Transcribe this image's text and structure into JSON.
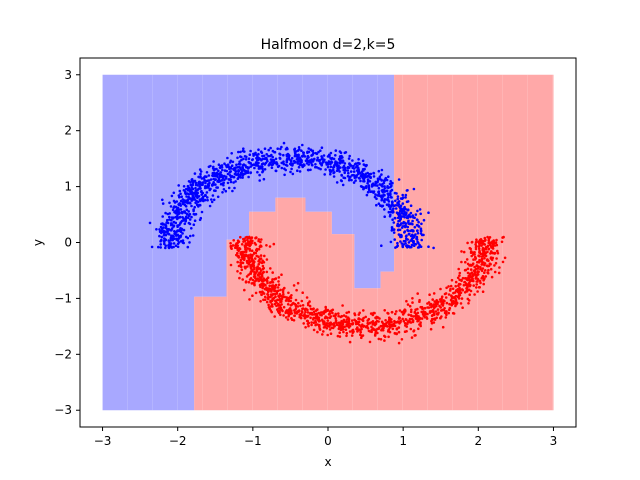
{
  "chart_data": {
    "type": "scatter",
    "title": "Halfmoon d=2,k=5",
    "xlabel": "x",
    "ylabel": "y",
    "xlim": [
      -3.3,
      3.3
    ],
    "ylim": [
      -3.3,
      3.3
    ],
    "xticks": [
      -3,
      -2,
      -1,
      0,
      1,
      2,
      3
    ],
    "yticks": [
      -3,
      -2,
      -1,
      0,
      1,
      2,
      3
    ],
    "grid": false,
    "legend": "none",
    "grid_extent": {
      "x": [
        -3,
        3
      ],
      "y": [
        -3,
        3
      ]
    },
    "decision_regions": [
      {
        "class": "blue",
        "polygon": [
          [
            -3,
            -3
          ],
          [
            -1.78,
            -3
          ],
          [
            -1.78,
            -0.97
          ],
          [
            -1.35,
            -0.97
          ],
          [
            -1.35,
            0.05
          ],
          [
            -1.05,
            0.05
          ],
          [
            -1.05,
            0.55
          ],
          [
            -0.7,
            0.55
          ],
          [
            -0.7,
            0.8
          ],
          [
            -0.3,
            0.8
          ],
          [
            -0.3,
            0.55
          ],
          [
            0.05,
            0.55
          ],
          [
            0.05,
            0.15
          ],
          [
            0.35,
            0.15
          ],
          [
            0.35,
            -0.82
          ],
          [
            0.7,
            -0.82
          ],
          [
            0.7,
            -0.52
          ],
          [
            0.88,
            -0.52
          ],
          [
            0.88,
            3
          ],
          [
            -3,
            3
          ]
        ]
      },
      {
        "class": "red",
        "polygon": [
          [
            -1.78,
            -3
          ],
          [
            3,
            -3
          ],
          [
            3,
            3
          ],
          [
            0.88,
            3
          ],
          [
            0.88,
            -0.52
          ],
          [
            0.7,
            -0.52
          ],
          [
            0.7,
            -0.82
          ],
          [
            0.35,
            -0.82
          ],
          [
            0.35,
            0.15
          ],
          [
            0.05,
            0.15
          ],
          [
            0.05,
            0.55
          ],
          [
            -0.3,
            0.55
          ],
          [
            -0.3,
            0.8
          ],
          [
            -0.7,
            0.8
          ],
          [
            -0.7,
            0.55
          ],
          [
            -1.05,
            0.55
          ],
          [
            -1.05,
            0.05
          ],
          [
            -1.35,
            0.05
          ],
          [
            -1.35,
            -0.97
          ],
          [
            -1.78,
            -0.97
          ]
        ]
      }
    ],
    "series": [
      {
        "color": "#0000ff",
        "shape": "upper half circle",
        "center": [
          -0.5,
          -0.1
        ],
        "radius": 1.6,
        "angle_deg": [
          0,
          180
        ],
        "thickness": 0.32,
        "n_points": 1400
      },
      {
        "color": "#ff0000",
        "shape": "lower half circle",
        "center": [
          0.5,
          0.1
        ],
        "radius": 1.6,
        "angle_deg": [
          180,
          360
        ],
        "thickness": 0.32,
        "n_points": 1400
      }
    ],
    "colors": {
      "blue_region": "#9999ff",
      "red_region": "#ff9999",
      "blue_points": "#0000ff",
      "red_points": "#ff0000"
    }
  }
}
